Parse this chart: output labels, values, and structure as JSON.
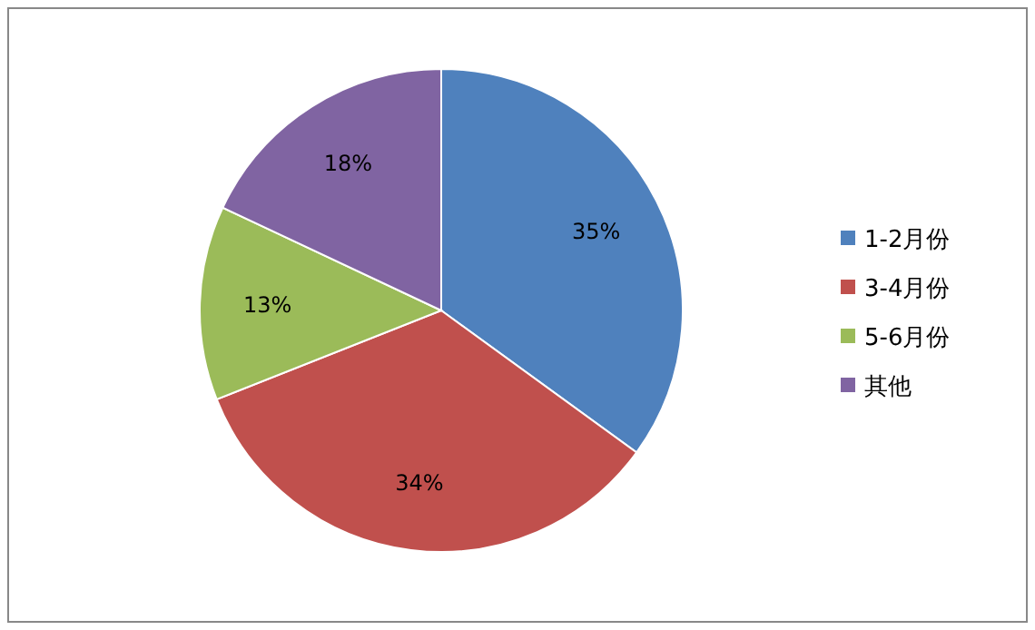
{
  "chart_data": {
    "type": "pie",
    "categories": [
      "1-2月份",
      "3-4月份",
      "5-6月份",
      "其他"
    ],
    "values": [
      35,
      34,
      13,
      18
    ],
    "colors": [
      "#4f81bd",
      "#c0504d",
      "#9bbb59",
      "#8064a2"
    ],
    "value_labels": [
      "35%",
      "34%",
      "13%",
      "18%"
    ],
    "legend": "right"
  }
}
